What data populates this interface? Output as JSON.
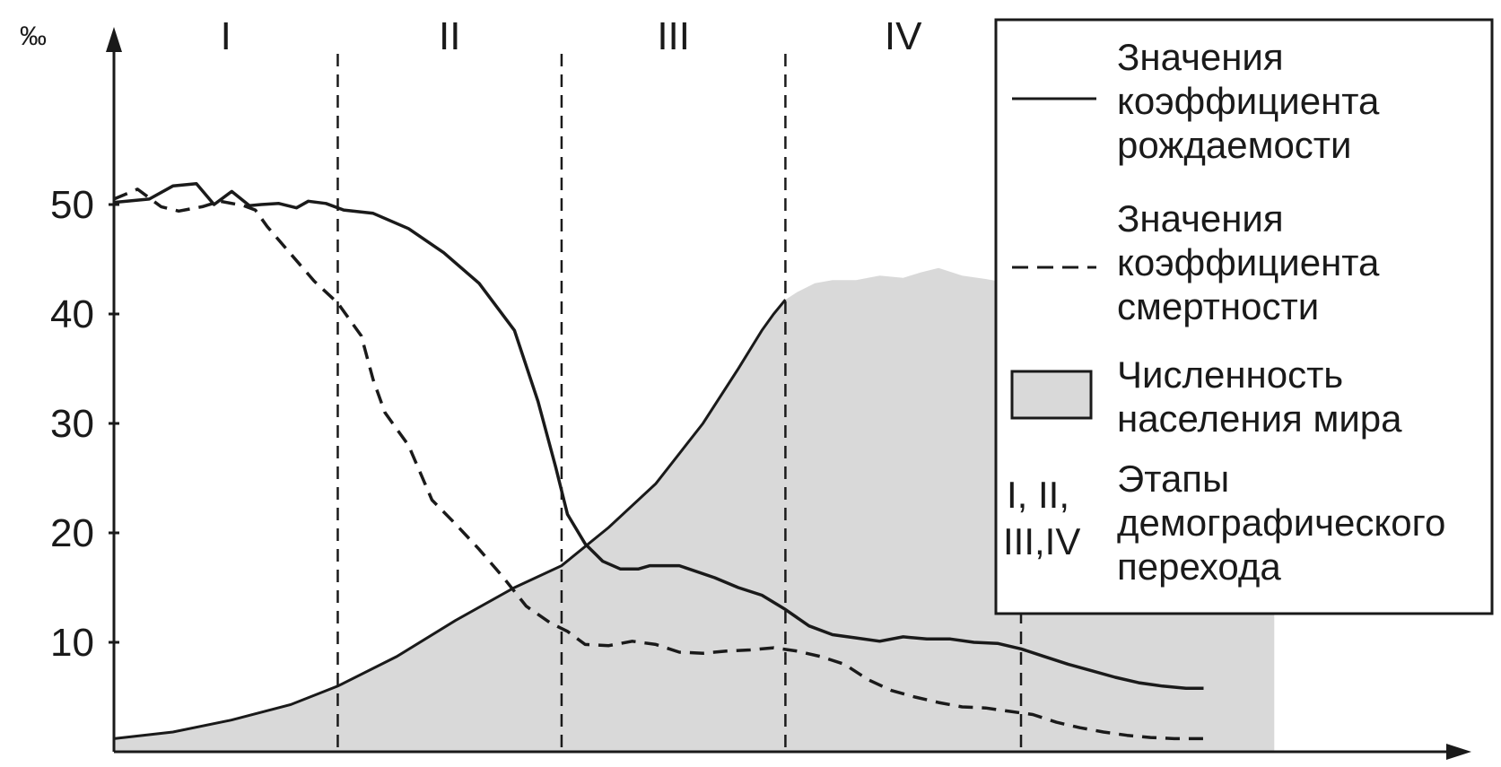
{
  "colors": {
    "population_fill": "#d9d9d9",
    "lines": "#1a1a1a",
    "background": "#ffffff"
  },
  "chart_data": {
    "type": "line",
    "ylabel": "‰",
    "ylim": [
      0,
      52
    ],
    "y_ticks": [
      10,
      20,
      30,
      40,
      50
    ],
    "x_range": [
      0,
      100
    ],
    "stage_bounds": [
      0,
      19,
      38,
      57,
      77
    ],
    "stages": [
      "I",
      "II",
      "III",
      "IV"
    ],
    "series": [
      {
        "key": "birth",
        "name": "Значения коэффициента рождаемости",
        "style": "solid",
        "x": [
          0,
          3,
          5,
          7,
          8.5,
          10,
          11.5,
          12.5,
          14,
          15.5,
          16.5,
          18,
          19.5,
          22,
          25,
          28,
          31,
          34,
          36,
          37.5,
          38.5,
          40,
          41.5,
          43,
          44.5,
          45.5,
          48,
          51,
          53,
          55,
          57,
          59,
          61,
          63,
          65,
          67,
          69,
          71,
          73,
          75,
          77,
          79,
          81,
          83,
          85,
          87,
          89,
          91,
          92.5
        ],
        "y": [
          50.2,
          50.5,
          51.7,
          51.9,
          50.0,
          51.2,
          49.9,
          50.0,
          50.1,
          49.7,
          50.3,
          50.1,
          49.5,
          49.2,
          47.8,
          45.6,
          42.8,
          38.5,
          32.0,
          26.0,
          21.7,
          19.0,
          17.4,
          16.7,
          16.7,
          17.0,
          17.0,
          15.9,
          15.0,
          14.3,
          13.0,
          11.5,
          10.7,
          10.4,
          10.1,
          10.5,
          10.3,
          10.3,
          10.0,
          9.9,
          9.4,
          8.7,
          8.0,
          7.4,
          6.8,
          6.3,
          6.0,
          5.8,
          5.8
        ]
      },
      {
        "key": "death",
        "name": "Значения коэффициента смертности",
        "style": "dashed",
        "x": [
          0,
          2,
          4,
          5.5,
          7.5,
          9,
          11,
          12,
          13,
          15,
          17,
          19,
          21,
          22,
          23,
          24,
          25,
          27,
          29,
          31,
          33,
          35,
          37,
          38.5,
          40,
          42,
          44,
          46,
          48,
          50,
          52,
          54,
          56,
          58,
          60,
          62,
          64,
          66,
          68,
          70,
          72,
          74,
          76,
          78,
          80,
          82,
          84,
          86,
          88,
          90,
          92.5
        ],
        "y": [
          50.5,
          51.4,
          49.8,
          49.4,
          49.8,
          50.3,
          49.9,
          49.5,
          48.0,
          45.5,
          43.0,
          41.0,
          38.0,
          34.0,
          31.0,
          29.5,
          28.0,
          23.0,
          20.8,
          18.5,
          16.0,
          13.3,
          11.8,
          11.0,
          9.8,
          9.7,
          10.1,
          9.8,
          9.1,
          9.0,
          9.2,
          9.3,
          9.5,
          9.2,
          8.7,
          8.0,
          6.6,
          5.6,
          5.0,
          4.5,
          4.1,
          4.0,
          3.7,
          3.4,
          2.7,
          2.2,
          1.8,
          1.5,
          1.3,
          1.2,
          1.2
        ]
      },
      {
        "key": "population",
        "name": "Численность населения мира",
        "style": "area",
        "x": [
          0,
          5,
          10,
          15,
          19,
          24,
          29,
          34,
          38,
          42,
          46,
          50,
          53,
          55,
          56,
          57,
          58,
          59.5,
          61,
          63,
          65,
          67,
          68.5,
          70,
          72,
          74,
          76,
          78,
          80,
          82,
          85,
          88,
          91,
          95,
          98.5
        ],
        "y": [
          1.2,
          1.8,
          2.9,
          4.3,
          6.0,
          8.7,
          12.0,
          15.0,
          17.0,
          20.5,
          24.5,
          30.0,
          35.0,
          38.5,
          40.0,
          41.3,
          42.0,
          42.8,
          43.1,
          43.1,
          43.5,
          43.3,
          43.8,
          44.2,
          43.5,
          43.2,
          42.8,
          42.6,
          42.5,
          42.4,
          42.3,
          42.2,
          42.2,
          42.2,
          42.2
        ]
      }
    ]
  },
  "legend": {
    "birth_lines": [
      "Значения",
      "коэффициента",
      "рождаемости"
    ],
    "death_lines": [
      "Значения",
      "коэффициента",
      "смертности"
    ],
    "population_lines": [
      "Численность",
      "населения мира"
    ],
    "stages_symbol_lines": [
      "I, II,",
      "III,IV"
    ],
    "stages_lines": [
      "Этапы",
      "демографического",
      "перехода"
    ]
  }
}
